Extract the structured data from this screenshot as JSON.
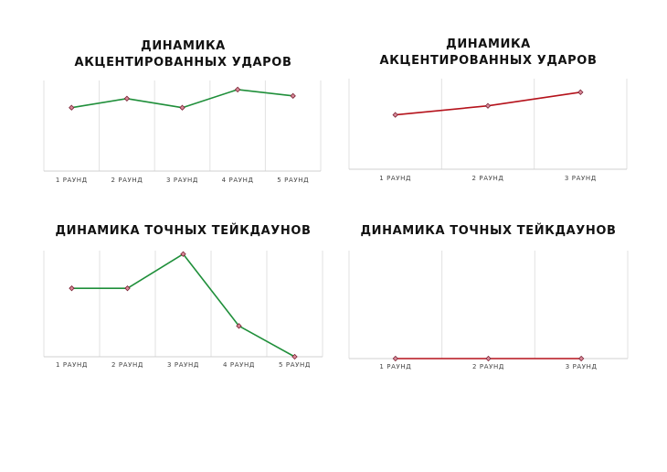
{
  "chart_data": [
    {
      "type": "line",
      "title": "ДИНАМИКА АКЦЕНТИРОВАННЫХ УДАРОВ",
      "categories": [
        "1 РАУНД",
        "2 РАУНД",
        "3 РАУНД",
        "4 РАУНД",
        "5 РАУНД"
      ],
      "series": [
        {
          "values": [
            7,
            8,
            7,
            9,
            8.3
          ]
        }
      ],
      "ylim": [
        0,
        10
      ],
      "grid": "vertical",
      "line_color": "#1f8f3a",
      "marker_color": "#d98a9a"
    },
    {
      "type": "line",
      "title": "ДИНАМИКА АКЦЕНТИРОВАННЫХ УДАРОВ",
      "categories": [
        "1 РАУНД",
        "2 РАУНД",
        "3 РАУНД"
      ],
      "series": [
        {
          "values": [
            6,
            7,
            8.5
          ]
        }
      ],
      "ylim": [
        0,
        10
      ],
      "grid": "vertical",
      "line_color": "#b5121b",
      "marker_color": "#d98a9a"
    },
    {
      "type": "line",
      "title": "ДИНАМИКА ТОЧНЫХ ТЕЙКДАУНОВ",
      "categories": [
        "1 РАУНД",
        "2 РАУНД",
        "3 РАУНД",
        "4 РАУНД",
        "5 РАУНД"
      ],
      "series": [
        {
          "values": [
            2,
            2,
            3,
            0.9,
            0
          ]
        }
      ],
      "ylim": [
        0,
        3.1
      ],
      "grid": "vertical",
      "line_color": "#1f8f3a",
      "marker_color": "#d98a9a"
    },
    {
      "type": "line",
      "title": "ДИНАМИКА ТОЧНЫХ ТЕЙКДАУНОВ",
      "categories": [
        "1 РАУНД",
        "2 РАУНД",
        "3 РАУНД"
      ],
      "series": [
        {
          "values": [
            0,
            0,
            0
          ]
        }
      ],
      "ylim": [
        0,
        10
      ],
      "grid": "vertical",
      "line_color": "#b5121b",
      "marker_color": "#d98a9a"
    }
  ]
}
